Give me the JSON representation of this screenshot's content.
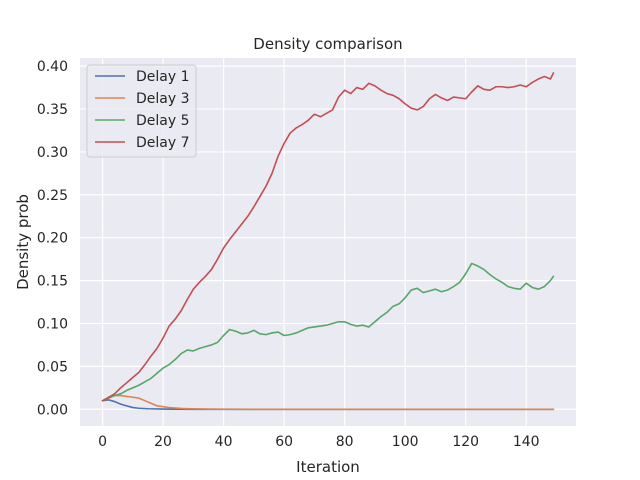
{
  "chart_data": {
    "type": "line",
    "title": "Density comparison",
    "xlabel": "Iteration",
    "ylabel": "Density prob",
    "xlim": [
      -7.45,
      156.45
    ],
    "ylim": [
      -0.0195,
      0.4095
    ],
    "xticks": [
      0,
      20,
      40,
      60,
      80,
      100,
      120,
      140
    ],
    "yticks": [
      0.0,
      0.05,
      0.1,
      0.15,
      0.2,
      0.25,
      0.3,
      0.35,
      0.4
    ],
    "ytick_labels": [
      "0.00",
      "0.05",
      "0.10",
      "0.15",
      "0.20",
      "0.25",
      "0.30",
      "0.35",
      "0.40"
    ],
    "grid": true,
    "legend_position": "upper-left",
    "colors": {
      "background": "#eaeaf2",
      "grid": "#ffffff"
    },
    "series": [
      {
        "name": "Delay 1",
        "color": "#4c72b0",
        "x": [
          0,
          2,
          4,
          6,
          8,
          10,
          12,
          15,
          20,
          25,
          30,
          40,
          50,
          100,
          149
        ],
        "values": [
          0.01,
          0.011,
          0.009,
          0.006,
          0.004,
          0.002,
          0.0012,
          0.0006,
          0.0003,
          0.0001,
          0.0,
          0.0,
          0.0,
          0.0,
          0.0
        ]
      },
      {
        "name": "Delay 3",
        "color": "#dd8452",
        "x": [
          0,
          2,
          4,
          6,
          8,
          10,
          12,
          14,
          16,
          18,
          20,
          22,
          24,
          26,
          28,
          30,
          35,
          40,
          50,
          100,
          149
        ],
        "values": [
          0.01,
          0.013,
          0.016,
          0.016,
          0.015,
          0.014,
          0.013,
          0.01,
          0.007,
          0.004,
          0.003,
          0.002,
          0.0015,
          0.001,
          0.0007,
          0.0005,
          0.0002,
          0.0001,
          0.0,
          0.0,
          0.0
        ]
      },
      {
        "name": "Delay 5",
        "color": "#55a868",
        "x": [
          0,
          3,
          6,
          8,
          10,
          12,
          14,
          16,
          18,
          20,
          22,
          24,
          26,
          28,
          30,
          32,
          34,
          36,
          38,
          40,
          42,
          44,
          46,
          48,
          50,
          52,
          54,
          56,
          58,
          60,
          62,
          64,
          66,
          68,
          70,
          72,
          74,
          76,
          78,
          80,
          82,
          84,
          86,
          88,
          90,
          92,
          94,
          96,
          98,
          100,
          102,
          104,
          106,
          108,
          110,
          112,
          114,
          116,
          118,
          120,
          122,
          124,
          126,
          128,
          130,
          132,
          134,
          136,
          138,
          140,
          142,
          144,
          146,
          148,
          149
        ],
        "values": [
          0.01,
          0.015,
          0.018,
          0.022,
          0.025,
          0.028,
          0.032,
          0.036,
          0.042,
          0.048,
          0.052,
          0.058,
          0.065,
          0.069,
          0.068,
          0.071,
          0.073,
          0.075,
          0.078,
          0.086,
          0.093,
          0.091,
          0.088,
          0.089,
          0.092,
          0.088,
          0.087,
          0.089,
          0.09,
          0.086,
          0.087,
          0.089,
          0.092,
          0.095,
          0.096,
          0.097,
          0.098,
          0.1,
          0.102,
          0.102,
          0.099,
          0.097,
          0.098,
          0.096,
          0.102,
          0.108,
          0.113,
          0.12,
          0.123,
          0.13,
          0.139,
          0.141,
          0.136,
          0.138,
          0.14,
          0.137,
          0.139,
          0.143,
          0.148,
          0.158,
          0.17,
          0.167,
          0.163,
          0.157,
          0.152,
          0.148,
          0.143,
          0.141,
          0.14,
          0.147,
          0.142,
          0.14,
          0.143,
          0.15,
          0.155
        ]
      },
      {
        "name": "Delay 7",
        "color": "#c44e52",
        "x": [
          0,
          2,
          4,
          6,
          8,
          10,
          12,
          14,
          16,
          18,
          20,
          22,
          24,
          26,
          28,
          30,
          32,
          34,
          36,
          38,
          40,
          42,
          44,
          46,
          48,
          50,
          52,
          54,
          56,
          58,
          60,
          62,
          64,
          66,
          68,
          70,
          72,
          74,
          76,
          78,
          80,
          82,
          84,
          86,
          88,
          90,
          92,
          94,
          96,
          98,
          100,
          102,
          104,
          106,
          108,
          110,
          112,
          114,
          116,
          118,
          120,
          122,
          124,
          126,
          128,
          130,
          132,
          134,
          136,
          138,
          140,
          142,
          144,
          146,
          148,
          149
        ],
        "values": [
          0.01,
          0.014,
          0.018,
          0.025,
          0.031,
          0.037,
          0.043,
          0.052,
          0.062,
          0.071,
          0.083,
          0.097,
          0.105,
          0.115,
          0.128,
          0.14,
          0.148,
          0.155,
          0.163,
          0.175,
          0.188,
          0.198,
          0.207,
          0.216,
          0.225,
          0.236,
          0.248,
          0.26,
          0.275,
          0.295,
          0.31,
          0.322,
          0.328,
          0.332,
          0.337,
          0.344,
          0.341,
          0.345,
          0.349,
          0.364,
          0.372,
          0.368,
          0.375,
          0.373,
          0.38,
          0.377,
          0.372,
          0.368,
          0.366,
          0.362,
          0.356,
          0.351,
          0.349,
          0.353,
          0.362,
          0.367,
          0.363,
          0.36,
          0.364,
          0.363,
          0.362,
          0.37,
          0.377,
          0.373,
          0.372,
          0.376,
          0.376,
          0.375,
          0.376,
          0.378,
          0.376,
          0.381,
          0.385,
          0.388,
          0.385,
          0.392
        ]
      }
    ]
  }
}
